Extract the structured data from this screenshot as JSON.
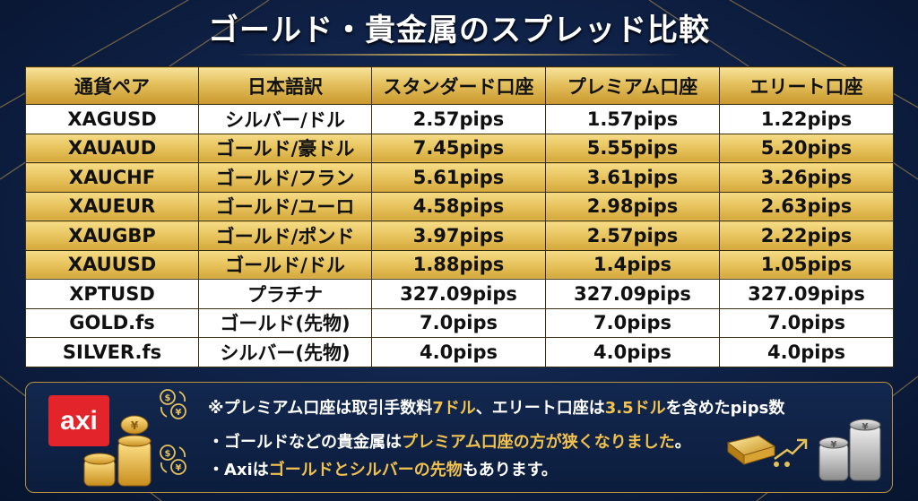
{
  "title": "ゴールド・貴金属のスプレッド比較",
  "headers": [
    "通貨ペア",
    "日本語訳",
    "スタンダード口座",
    "プレミアム口座",
    "エリート口座"
  ],
  "rows": [
    {
      "pair": "XAGUSD",
      "name": "シルバー/ドル",
      "standard": "2.57pips",
      "premium": "1.57pips",
      "elite": "1.22pips",
      "style": "white"
    },
    {
      "pair": "XAUAUD",
      "name": "ゴールド/豪ドル",
      "standard": "7.45pips",
      "premium": "5.55pips",
      "elite": "5.20pips",
      "style": "gold"
    },
    {
      "pair": "XAUCHF",
      "name": "ゴールド/フラン",
      "standard": "5.61pips",
      "premium": "3.61pips",
      "elite": "3.26pips",
      "style": "gold"
    },
    {
      "pair": "XAUEUR",
      "name": "ゴールド/ユーロ",
      "standard": "4.58pips",
      "premium": "2.98pips",
      "elite": "2.63pips",
      "style": "gold"
    },
    {
      "pair": "XAUGBP",
      "name": "ゴールド/ポンド",
      "standard": "3.97pips",
      "premium": "2.57pips",
      "elite": "2.22pips",
      "style": "gold"
    },
    {
      "pair": "XAUUSD",
      "name": "ゴールド/ドル",
      "standard": "1.88pips",
      "premium": "1.4pips",
      "elite": "1.05pips",
      "style": "gold"
    },
    {
      "pair": "XPTUSD",
      "name": "プラチナ",
      "standard": "327.09pips",
      "premium": "327.09pips",
      "elite": "327.09pips",
      "style": "white"
    },
    {
      "pair": "GOLD.fs",
      "name": "ゴールド(先物)",
      "standard": "7.0pips",
      "premium": "7.0pips",
      "elite": "7.0pips",
      "style": "white"
    },
    {
      "pair": "SILVER.fs",
      "name": "シルバー(先物)",
      "standard": "4.0pips",
      "premium": "4.0pips",
      "elite": "4.0pips",
      "style": "white"
    }
  ],
  "logo": "axi",
  "notes": {
    "line1": {
      "a": "※プレミアム口座は取引手数料",
      "b": "7ドル",
      "c": "、エリート口座は",
      "d": "3.5ドル",
      "e": "を含めたpips数"
    },
    "line2": {
      "a": "・ゴールドなどの貴金属は",
      "b": "プレミアム口座の方が狭くなりました",
      "c": "。"
    },
    "line3": {
      "a": "・Axiは",
      "b": "ゴールドとシルバーの先物",
      "c": "もあります。"
    }
  },
  "colors": {
    "gold": "#e6c15a",
    "highlight": "#f2c24e",
    "navy": "#10234a",
    "logo_red": "#e3242b"
  },
  "icons": [
    "axi-logo",
    "gold-coins-icon",
    "currency-exchange-icon",
    "gold-bar-icon",
    "up-arrow-icon",
    "silver-coins-icon"
  ]
}
